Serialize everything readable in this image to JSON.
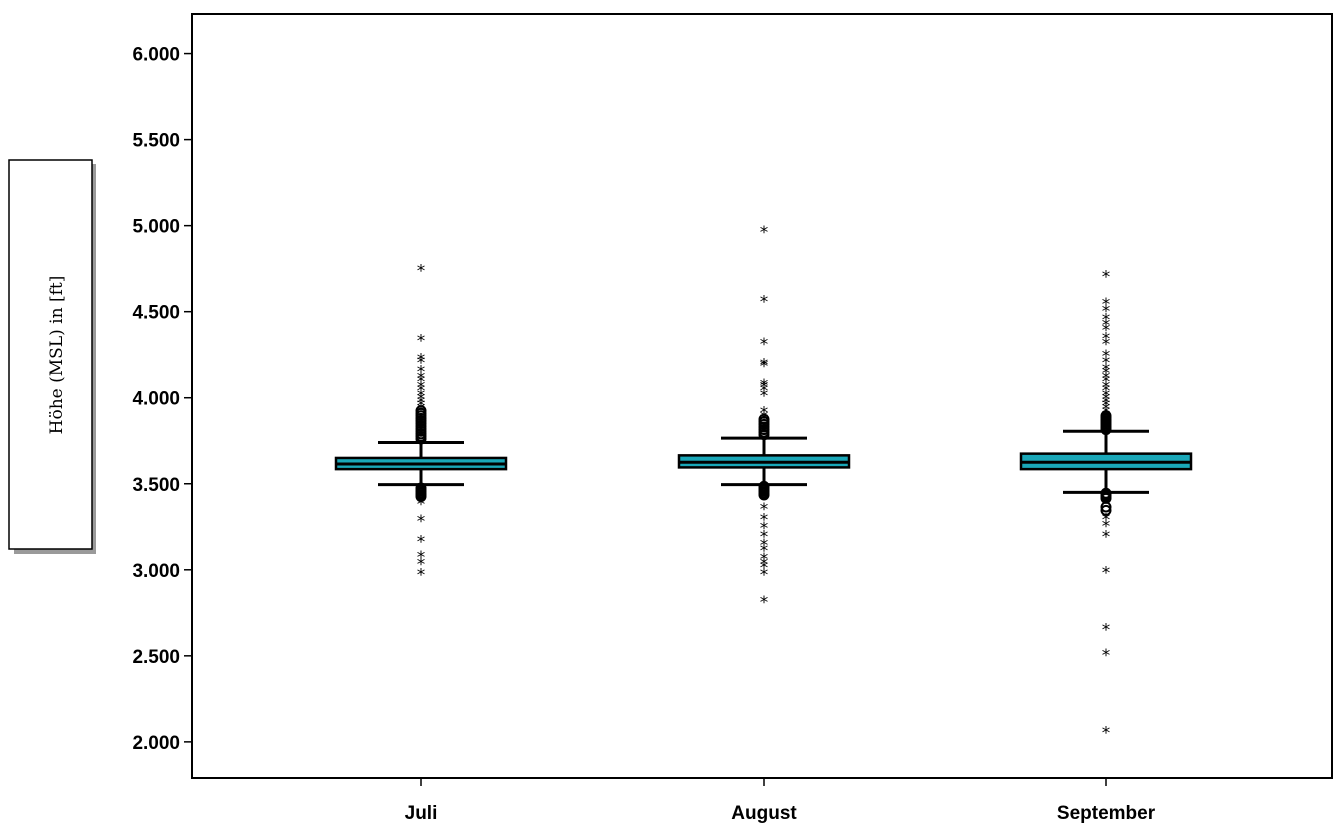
{
  "chart_data": {
    "type": "boxplot",
    "ylabel": "Höhe (MSL) in [ft]",
    "ylim": [
      1790,
      6230
    ],
    "yticks": [
      {
        "value": 2000,
        "label": "2.000"
      },
      {
        "value": 2500,
        "label": "2.500"
      },
      {
        "value": 3000,
        "label": "3.000"
      },
      {
        "value": 3500,
        "label": "3.500"
      },
      {
        "value": 4000,
        "label": "4.000"
      },
      {
        "value": 4500,
        "label": "4.500"
      },
      {
        "value": 5000,
        "label": "5.000"
      },
      {
        "value": 5500,
        "label": "5.500"
      },
      {
        "value": 6000,
        "label": "6.000"
      }
    ],
    "categories": [
      "Juli",
      "August",
      "September"
    ],
    "box_color": "#1aa7b8",
    "boxes": [
      {
        "name": "Juli",
        "whisker_low": 3495,
        "q1": 3585,
        "median": 3615,
        "q3": 3650,
        "whisker_high": 3740,
        "circles": [
          3425,
          3435,
          3445,
          3455,
          3465,
          3475,
          3760,
          3775,
          3790,
          3805,
          3820,
          3835,
          3850,
          3865,
          3880,
          3895,
          3910,
          3925
        ],
        "stars": [
          2985,
          3045,
          3085,
          3175,
          3295,
          3395,
          3945,
          3965,
          3985,
          4005,
          4025,
          4055,
          4075,
          4105,
          4125,
          4165,
          4215,
          4235,
          4345,
          4750
        ]
      },
      {
        "name": "August",
        "whisker_low": 3495,
        "q1": 3595,
        "median": 3625,
        "q3": 3665,
        "whisker_high": 3765,
        "circles": [
          3435,
          3445,
          3455,
          3465,
          3475,
          3485,
          3785,
          3800,
          3815,
          3830,
          3845,
          3860,
          3875
        ],
        "stars": [
          2825,
          2985,
          3025,
          3045,
          3075,
          3125,
          3155,
          3205,
          3255,
          3305,
          3365,
          3885,
          3900,
          3925,
          4025,
          4055,
          4075,
          4085,
          4195,
          4205,
          4325,
          4570,
          4975
        ]
      },
      {
        "name": "September",
        "whisker_low": 3450,
        "q1": 3585,
        "median": 3625,
        "q3": 3675,
        "whisker_high": 3805,
        "circles": [
          3345,
          3365,
          3415,
          3425,
          3435,
          3445,
          3815,
          3825,
          3835,
          3845,
          3855,
          3865,
          3875,
          3885,
          3895
        ],
        "stars": [
          2065,
          2515,
          2665,
          2995,
          3205,
          3265,
          3305,
          3905,
          3925,
          3945,
          3965,
          3985,
          4005,
          4025,
          4055,
          4075,
          4105,
          4125,
          4155,
          4175,
          4215,
          4255,
          4325,
          4355,
          4405,
          4435,
          4465,
          4515,
          4555,
          4715
        ]
      }
    ]
  }
}
